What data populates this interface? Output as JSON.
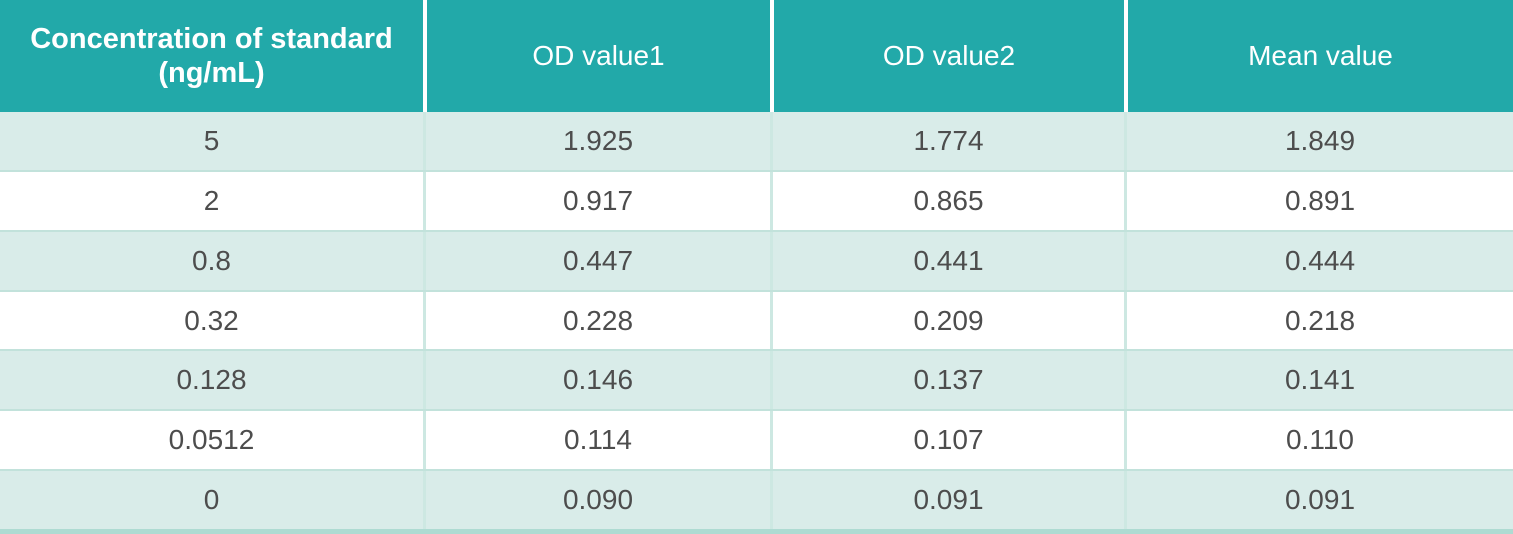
{
  "table": {
    "header": {
      "concentration_line1": "Concentration of standard",
      "concentration_line2": "(ng/mL)",
      "od1": "OD value1",
      "od2": "OD value2",
      "mean": "Mean value"
    },
    "rows": [
      [
        "5",
        "1.925",
        "1.774",
        "1.849"
      ],
      [
        "2",
        "0.917",
        "0.865",
        "0.891"
      ],
      [
        "0.8",
        "0.447",
        "0.441",
        "0.444"
      ],
      [
        "0.32",
        "0.228",
        "0.209",
        "0.218"
      ],
      [
        "0.128",
        "0.146",
        "0.137",
        "0.141"
      ],
      [
        "0.0512",
        "0.114",
        "0.107",
        "0.110"
      ],
      [
        "0",
        "0.090",
        "0.091",
        "0.091"
      ]
    ]
  },
  "colors": {
    "header_bg": "#22a9a9",
    "row_alt_bg": "#d9ece9",
    "row_bg": "#ffffff",
    "divider_h": "#c2e2db",
    "divider_v": "#cde8e2",
    "header_text": "#ffffff",
    "body_text": "#4d4d4d",
    "bottom_strip": "#aedbd2"
  },
  "chart_data": {
    "type": "table",
    "title": "",
    "columns": [
      "Concentration of standard (ng/mL)",
      "OD value1",
      "OD value2",
      "Mean value"
    ],
    "rows": [
      [
        5,
        1.925,
        1.774,
        1.849
      ],
      [
        2,
        0.917,
        0.865,
        0.891
      ],
      [
        0.8,
        0.447,
        0.441,
        0.444
      ],
      [
        0.32,
        0.228,
        0.209,
        0.218
      ],
      [
        0.128,
        0.146,
        0.137,
        0.141
      ],
      [
        0.0512,
        0.114,
        0.107,
        0.11
      ],
      [
        0,
        0.09,
        0.091,
        0.091
      ]
    ]
  }
}
